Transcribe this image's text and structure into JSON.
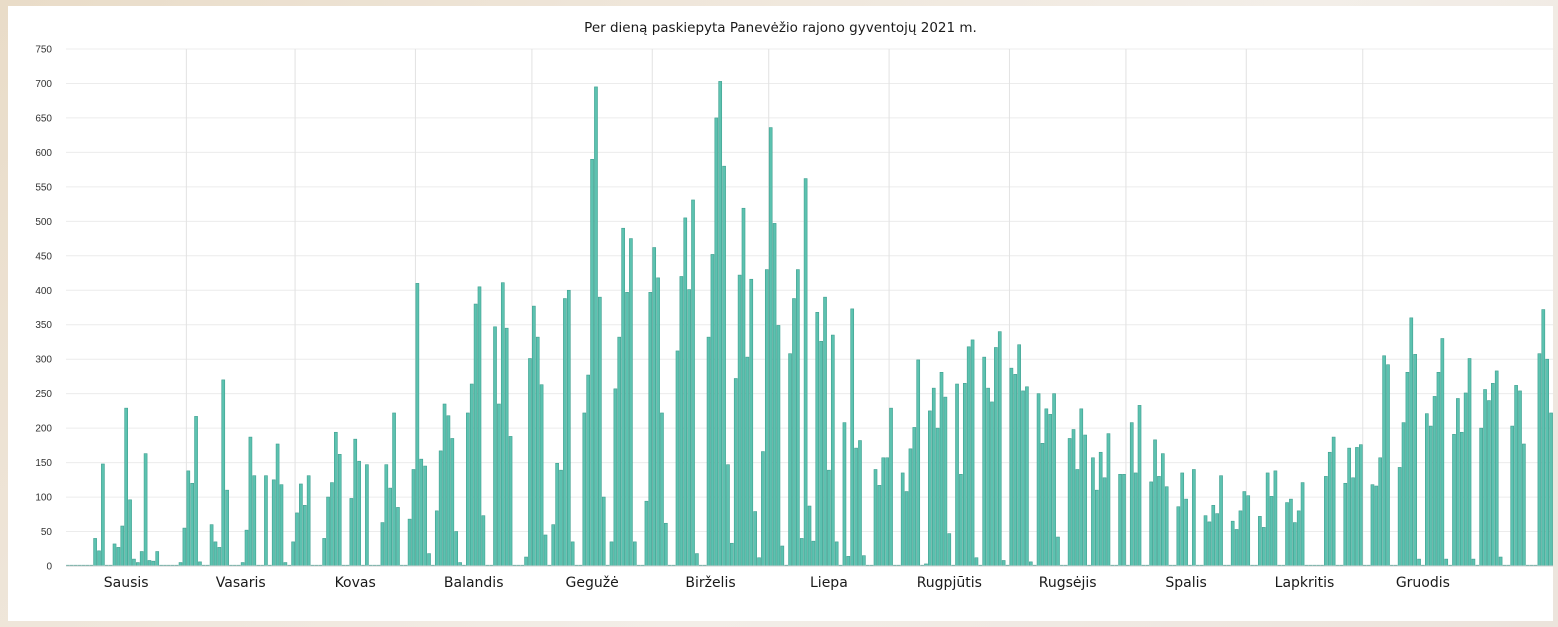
{
  "chart_data": {
    "type": "bar",
    "title": "Per dieną paskiepyta Panevėžio rajono gyventojų 2021 m.",
    "xlabel": "",
    "ylabel": "",
    "ylim": [
      0,
      750
    ],
    "yticks": [
      0,
      50,
      100,
      150,
      200,
      250,
      300,
      350,
      400,
      450,
      500,
      550,
      600,
      650,
      700,
      750
    ],
    "grid": true,
    "months": [
      "Sausis",
      "Vasaris",
      "Kovas",
      "Balandis",
      "Gegužė",
      "Birželis",
      "Liepa",
      "Rugpjūtis",
      "Rugsėjis",
      "Spalis",
      "Lapkritis",
      "Gruodis"
    ],
    "values": [
      0,
      0,
      0,
      0,
      0,
      0,
      0,
      40,
      22,
      148,
      0,
      0,
      32,
      27,
      58,
      229,
      96,
      10,
      5,
      21,
      163,
      8,
      7,
      21,
      0,
      0,
      0,
      0,
      0,
      5,
      55,
      138,
      120,
      217,
      6,
      0,
      0,
      60,
      35,
      27,
      270,
      110,
      0,
      0,
      0,
      5,
      52,
      187,
      131,
      0,
      0,
      131,
      0,
      125,
      177,
      118,
      5,
      0,
      35,
      77,
      119,
      88,
      131,
      0,
      0,
      0,
      40,
      100,
      121,
      194,
      162,
      0,
      0,
      98,
      184,
      152,
      0,
      147,
      0,
      0,
      0,
      63,
      147,
      113,
      222,
      85,
      0,
      0,
      68,
      140,
      410,
      155,
      145,
      18,
      0,
      80,
      167,
      235,
      218,
      185,
      50,
      5,
      0,
      222,
      264,
      380,
      405,
      73,
      0,
      0,
      347,
      235,
      411,
      345,
      188,
      0,
      0,
      0,
      13,
      301,
      377,
      332,
      263,
      45,
      0,
      60,
      149,
      139,
      388,
      400,
      35,
      0,
      0,
      222,
      277,
      590,
      695,
      390,
      100,
      0,
      35,
      257,
      332,
      490,
      397,
      475,
      35,
      0,
      0,
      94,
      397,
      462,
      418,
      222,
      62,
      0,
      0,
      312,
      420,
      505,
      401,
      531,
      18,
      0,
      0,
      332,
      452,
      650,
      703,
      580,
      147,
      33,
      272,
      422,
      519,
      303,
      416,
      79,
      12,
      166,
      430,
      636,
      497,
      349,
      29,
      0,
      308,
      388,
      430,
      40,
      562,
      87,
      36,
      368,
      326,
      390,
      139,
      335,
      35,
      0,
      208,
      14,
      373,
      171,
      182,
      15,
      0,
      0,
      140,
      117,
      157,
      157,
      229,
      0,
      0,
      135,
      108,
      170,
      201,
      299,
      0,
      3,
      225,
      258,
      200,
      281,
      245,
      47,
      0,
      264,
      133,
      265,
      318,
      328,
      12,
      0,
      303,
      258,
      238,
      317,
      340,
      8,
      0,
      287,
      278,
      321,
      254,
      260,
      6,
      0,
      250,
      178,
      228,
      220,
      250,
      42,
      0,
      0,
      185,
      198,
      140,
      228,
      190,
      0,
      157,
      110,
      165,
      128,
      192,
      0,
      0,
      133,
      133,
      0,
      208,
      135,
      233,
      0,
      0,
      122,
      183,
      130,
      163,
      115,
      0,
      0,
      86,
      135,
      97,
      0,
      140,
      0,
      0,
      73,
      64,
      88,
      76,
      131,
      0,
      0,
      65,
      53,
      80,
      108,
      102,
      0,
      0,
      72,
      56,
      135,
      101,
      138,
      0,
      0,
      92,
      97,
      63,
      80,
      121,
      0,
      0,
      0,
      0,
      0,
      130,
      165,
      187,
      0,
      0,
      120,
      171,
      128,
      172,
      176,
      0,
      0,
      118,
      116,
      157,
      305,
      292,
      0,
      0,
      143,
      208,
      281,
      360,
      307,
      10,
      0,
      221,
      203,
      246,
      281,
      330,
      10,
      0,
      191,
      243,
      194,
      251,
      301,
      10,
      0,
      200,
      256,
      240,
      265,
      283,
      13,
      0,
      0,
      203,
      262,
      254,
      177,
      0,
      0,
      0,
      308,
      372,
      300,
      222
    ]
  }
}
